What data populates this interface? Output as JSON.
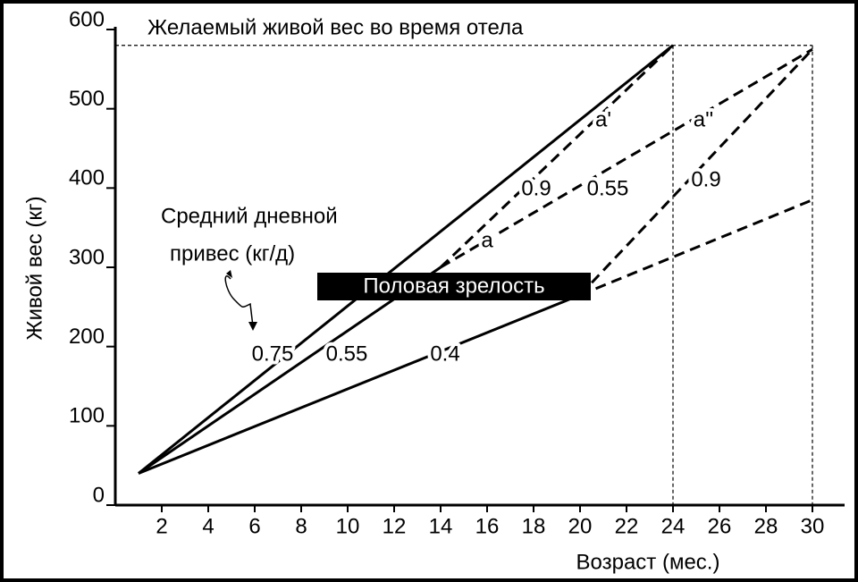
{
  "chart_data": {
    "type": "line",
    "title": "Желаемый живой вес во время отела",
    "x_label": "Возраст (мес.)",
    "y_label": "Живой вес (кг)",
    "annotations": [
      "Средний дневной",
      "привес (кг/д)",
      "Половая зрелость",
      "a",
      "a'",
      "a''"
    ],
    "xlim": [
      0,
      31
    ],
    "ylim": [
      0,
      600
    ],
    "xticks": [
      2,
      4,
      6,
      8,
      10,
      12,
      14,
      16,
      18,
      20,
      22,
      24,
      26,
      28,
      30
    ],
    "yticks": [
      0,
      100,
      200,
      300,
      400,
      500,
      600
    ],
    "hlines": [
      580
    ],
    "vlines": [
      24,
      30
    ],
    "color": "#000000",
    "series": [
      {
        "name": "0.75",
        "line_style": "solid",
        "x": [
          1,
          24
        ],
        "values": [
          40,
          580
        ]
      },
      {
        "name": "0.55",
        "line_style": "solid",
        "x": [
          1,
          14
        ],
        "values": [
          40,
          300
        ]
      },
      {
        "name": "0.4",
        "line_style": "solid",
        "x": [
          1,
          20
        ],
        "values": [
          40,
          265
        ]
      },
      {
        "name": "0.9",
        "line_style": "dashed",
        "x": [
          14,
          24
        ],
        "values": [
          300,
          580
        ]
      },
      {
        "name": "0.55",
        "line_style": "dashed",
        "x": [
          14,
          30
        ],
        "values": [
          300,
          575
        ]
      },
      {
        "name": "0.9",
        "line_style": "dashed",
        "x": [
          20,
          30
        ],
        "values": [
          265,
          575
        ]
      },
      {
        "line_style": "dashed",
        "x": [
          20,
          30
        ],
        "values": [
          265,
          385
        ]
      }
    ]
  }
}
